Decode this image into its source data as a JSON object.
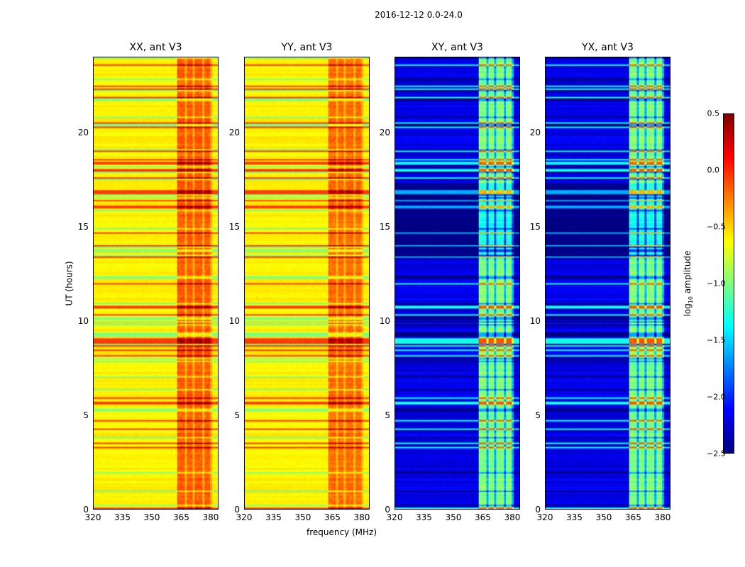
{
  "chart_data": {
    "type": "heatmap",
    "title": "2016-12-12 0.0-24.0",
    "xlabel": "frequency (MHz)",
    "ylabel": "UT (hours)",
    "xlim": [
      320,
      384
    ],
    "ylim": [
      0,
      24
    ],
    "xticks": [
      "320",
      "335",
      "350",
      "365",
      "380"
    ],
    "xtick_values": [
      320,
      335,
      350,
      365,
      380
    ],
    "yticks": [
      "0",
      "5",
      "10",
      "15",
      "20"
    ],
    "ytick_values": [
      0,
      5,
      10,
      15,
      20
    ],
    "colormap": "jet",
    "colorbar": {
      "label": "log10 amplitude",
      "label_main": "log",
      "label_sub": "10",
      "label_tail": " amplitude",
      "range": [
        -2.5,
        0.5
      ],
      "ticks": [
        "0.5",
        "0.0",
        "−0.5",
        "−1.0",
        "−1.5",
        "−2.0",
        "−2.5"
      ],
      "tick_values": [
        0.5,
        0.0,
        -0.5,
        -1.0,
        -1.5,
        -2.0,
        -2.5
      ]
    },
    "panels": [
      {
        "title": "XX, ant V3",
        "baseline": -0.6,
        "rfi_band_MHz": [
          363,
          381
        ],
        "rfi_level": -0.15,
        "rfi_columns_MHz": [
          [
            363,
            367
          ],
          [
            368,
            371
          ],
          [
            372,
            376
          ],
          [
            377,
            380
          ]
        ]
      },
      {
        "title": "YY, ant V3",
        "baseline": -0.6,
        "rfi_band_MHz": [
          363,
          381
        ],
        "rfi_level": -0.2,
        "rfi_columns_MHz": [
          [
            363,
            367
          ],
          [
            368,
            371
          ],
          [
            372,
            376
          ],
          [
            377,
            380
          ]
        ]
      },
      {
        "title": "XY, ant V3",
        "baseline": -2.2,
        "rfi_band_MHz": [
          363,
          381
        ],
        "rfi_level": -1.0,
        "rfi_columns_MHz": [
          [
            363,
            367
          ],
          [
            368,
            371
          ],
          [
            372,
            376
          ],
          [
            377,
            380
          ]
        ]
      },
      {
        "title": "YX, ant V3",
        "baseline": -2.2,
        "rfi_band_MHz": [
          363,
          381
        ],
        "rfi_level": -1.0,
        "rfi_columns_MHz": [
          [
            363,
            367
          ],
          [
            368,
            371
          ],
          [
            372,
            376
          ],
          [
            377,
            380
          ]
        ]
      }
    ]
  }
}
